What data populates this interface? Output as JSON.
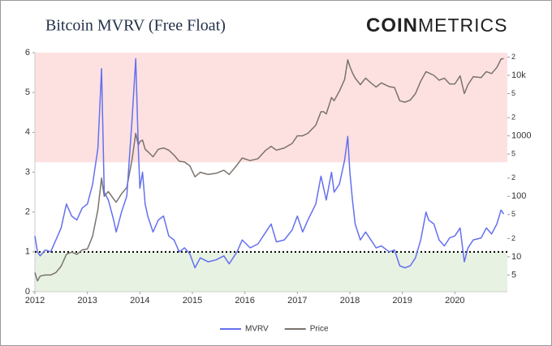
{
  "chart_data": {
    "type": "line",
    "title": "Bitcoin MVRV (Free Float)",
    "logo": {
      "bold": "COIN",
      "light": "METRICS"
    },
    "x": [
      2012.0,
      2012.05,
      2012.1,
      2012.2,
      2012.3,
      2012.4,
      2012.5,
      2012.6,
      2012.7,
      2012.8,
      2012.9,
      2013.0,
      2013.1,
      2013.2,
      2013.27,
      2013.32,
      2013.4,
      2013.5,
      2013.55,
      2013.65,
      2013.75,
      2013.85,
      2013.92,
      2013.97,
      2014.0,
      2014.05,
      2014.1,
      2014.15,
      2014.25,
      2014.35,
      2014.45,
      2014.55,
      2014.65,
      2014.75,
      2014.85,
      2014.95,
      2015.05,
      2015.15,
      2015.3,
      2015.45,
      2015.6,
      2015.7,
      2015.85,
      2015.95,
      2016.1,
      2016.25,
      2016.4,
      2016.5,
      2016.6,
      2016.75,
      2016.9,
      2017.0,
      2017.1,
      2017.2,
      2017.35,
      2017.45,
      2017.5,
      2017.55,
      2017.65,
      2017.7,
      2017.8,
      2017.9,
      2017.96,
      2018.0,
      2018.05,
      2018.1,
      2018.2,
      2018.3,
      2018.4,
      2018.5,
      2018.6,
      2018.75,
      2018.85,
      2018.95,
      2019.05,
      2019.15,
      2019.25,
      2019.35,
      2019.45,
      2019.5,
      2019.6,
      2019.7,
      2019.8,
      2019.9,
      2020.0,
      2020.1,
      2020.18,
      2020.25,
      2020.35,
      2020.5,
      2020.6,
      2020.7,
      2020.8,
      2020.88,
      2020.93
    ],
    "series": [
      {
        "name": "MVRV",
        "color": "#6470ee",
        "axis": "y",
        "values": [
          1.4,
          1.0,
          0.9,
          1.05,
          1.0,
          1.3,
          1.6,
          2.2,
          1.9,
          1.8,
          2.1,
          2.2,
          2.7,
          3.6,
          5.6,
          2.5,
          2.3,
          1.8,
          1.5,
          2.0,
          2.4,
          4.3,
          5.85,
          3.6,
          2.6,
          3.0,
          2.2,
          1.9,
          1.5,
          1.8,
          1.9,
          1.4,
          1.3,
          1.0,
          1.1,
          0.95,
          0.6,
          0.85,
          0.75,
          0.8,
          0.9,
          0.7,
          1.0,
          1.3,
          1.1,
          1.2,
          1.5,
          1.7,
          1.25,
          1.3,
          1.55,
          1.9,
          1.5,
          1.8,
          2.2,
          2.9,
          2.6,
          2.3,
          3.0,
          2.5,
          2.7,
          3.3,
          3.9,
          3.0,
          2.3,
          1.7,
          1.3,
          1.5,
          1.3,
          1.1,
          1.15,
          1.0,
          1.05,
          0.65,
          0.6,
          0.65,
          0.85,
          1.3,
          2.0,
          1.8,
          1.7,
          1.3,
          1.15,
          1.35,
          1.4,
          1.6,
          0.75,
          1.1,
          1.3,
          1.35,
          1.6,
          1.45,
          1.7,
          2.05,
          1.95
        ]
      },
      {
        "name": "Price",
        "color": "#7a726c",
        "axis": "y2",
        "values": [
          5.5,
          4,
          4.8,
          5,
          5,
          5.5,
          7,
          11,
          12,
          11,
          13,
          13.5,
          22,
          60,
          200,
          100,
          120,
          90,
          80,
          110,
          140,
          400,
          1100,
          700,
          800,
          850,
          600,
          550,
          450,
          600,
          630,
          580,
          480,
          380,
          370,
          320,
          210,
          250,
          230,
          240,
          270,
          230,
          330,
          430,
          390,
          420,
          580,
          670,
          580,
          630,
          750,
          1000,
          1000,
          1100,
          1500,
          2500,
          2500,
          2300,
          4300,
          3800,
          5500,
          8500,
          18000,
          14000,
          11000,
          9000,
          7000,
          9000,
          7500,
          6400,
          7500,
          6500,
          6300,
          3800,
          3600,
          3900,
          5000,
          8000,
          11500,
          11000,
          10000,
          8300,
          9000,
          7200,
          7200,
          9800,
          5000,
          7000,
          9500,
          9200,
          11500,
          10700,
          13500,
          18500,
          19000
        ]
      }
    ],
    "xlim": [
      2012,
      2021
    ],
    "xticks": [
      2012,
      2013,
      2014,
      2015,
      2016,
      2017,
      2018,
      2019,
      2020
    ],
    "ylim": [
      0,
      6
    ],
    "yticks": [
      0,
      1,
      2,
      3,
      4,
      5,
      6
    ],
    "y2lim": [
      2.65,
      23700
    ],
    "y2_scale": "log",
    "y2ticks": [
      5,
      10,
      {
        "value": 20,
        "label": "2"
      },
      {
        "value": 50,
        "label": "5"
      },
      100,
      {
        "value": 200,
        "label": "2"
      },
      {
        "value": 500,
        "label": "5"
      },
      1000,
      {
        "value": 2000,
        "label": "2"
      },
      {
        "value": 5000,
        "label": "5"
      },
      {
        "value": 10000,
        "label": "10k"
      },
      {
        "value": 20000,
        "label": "2"
      }
    ],
    "bands": [
      {
        "from": 3.25,
        "to": 6,
        "color": "#fde1e1"
      },
      {
        "from": 0,
        "to": 1,
        "color": "#e7f2e3"
      }
    ],
    "reference_line": {
      "value": 1,
      "color": "#000000"
    },
    "grid": false,
    "legend": "bottom"
  }
}
